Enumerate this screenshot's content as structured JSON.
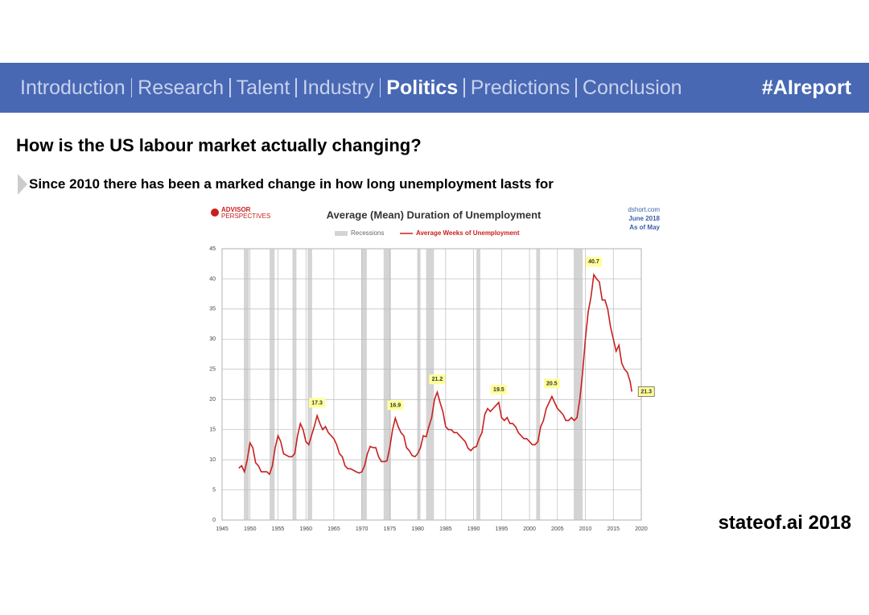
{
  "header": {
    "nav": [
      "Introduction",
      "Research",
      "Talent",
      "Industry",
      "Politics",
      "Predictions",
      "Conclusion"
    ],
    "highlighted": "Politics",
    "tag": "#AIreport"
  },
  "title": "How is the US labour market actually changing?",
  "subtitle": "Since 2010 there has been a marked change in how long unemployment lasts for",
  "footer": "stateof.ai 2018",
  "chart_data": {
    "type": "line",
    "title": "Average (Mean) Duration of Unemployment",
    "logo": [
      "ADVISOR",
      "PERSPECTIVES"
    ],
    "source": [
      "dshort.com",
      "June 2018",
      "As of May"
    ],
    "x": [
      1948,
      1948.5,
      1949,
      1949.5,
      1950,
      1950.5,
      1951,
      1951.5,
      1952,
      1953,
      1953.5,
      1954,
      1954.5,
      1955,
      1955.5,
      1956,
      1957,
      1957.5,
      1958,
      1958.5,
      1959,
      1959.5,
      1960,
      1960.5,
      1961,
      1961.5,
      1962,
      1962.5,
      1963,
      1963.5,
      1964,
      1965,
      1965.5,
      1966,
      1966.5,
      1967,
      1967.5,
      1968,
      1969,
      1969.5,
      1970,
      1970.5,
      1971,
      1971.5,
      1972,
      1972.5,
      1973,
      1973.5,
      1974,
      1974.5,
      1975,
      1975.5,
      1976,
      1976.5,
      1977,
      1977.5,
      1978,
      1978.5,
      1979,
      1979.5,
      1980,
      1980.5,
      1981,
      1981.5,
      1982,
      1982.5,
      1983,
      1983.5,
      1984,
      1984.5,
      1985,
      1985.5,
      1986,
      1986.5,
      1987,
      1987.5,
      1988,
      1988.5,
      1989,
      1989.5,
      1990,
      1990.5,
      1991,
      1991.5,
      1992,
      1992.5,
      1993,
      1993.5,
      1994,
      1994.5,
      1995,
      1995.5,
      1996,
      1996.5,
      1997,
      1997.5,
      1998,
      1998.5,
      1999,
      1999.5,
      2000,
      2000.5,
      2001,
      2001.5,
      2002,
      2002.5,
      2003,
      2003.5,
      2004,
      2004.5,
      2005,
      2005.5,
      2006,
      2006.5,
      2007,
      2007.5,
      2008,
      2008.5,
      2009,
      2009.5,
      2010,
      2010.5,
      2011,
      2011.5,
      2012,
      2012.5,
      2013,
      2013.5,
      2014,
      2014.5,
      2015,
      2015.5,
      2016,
      2016.5,
      2017,
      2017.5,
      2018,
      2018.3
    ],
    "series": [
      {
        "name": "Average Weeks of Unemployment",
        "color": "#c8201e",
        "values": [
          8.6,
          9,
          8,
          10,
          12.8,
          12,
          9.5,
          9,
          8,
          8,
          7.6,
          9,
          12,
          14,
          13,
          11,
          10.5,
          10.5,
          11,
          14,
          16,
          15,
          13,
          12.5,
          14,
          15.5,
          17.3,
          16,
          15,
          15.5,
          14.5,
          13.5,
          12.5,
          11,
          10.5,
          9,
          8.5,
          8.5,
          8,
          7.8,
          8,
          9,
          11,
          12.2,
          12,
          12,
          10.5,
          9.7,
          9.7,
          9.8,
          12,
          15,
          16.9,
          15.5,
          14.5,
          14,
          12,
          11.5,
          10.7,
          10.5,
          11,
          12,
          14,
          13.8,
          15.5,
          17,
          20,
          21.2,
          19.5,
          18,
          15.5,
          15,
          15,
          14.5,
          14.5,
          14,
          13.5,
          13,
          11.9,
          11.5,
          12,
          12.2,
          13.5,
          14.5,
          17.5,
          18.5,
          18,
          18.5,
          19,
          19.5,
          17,
          16.5,
          17,
          16,
          16,
          15.5,
          14.5,
          14,
          13.5,
          13.5,
          13,
          12.5,
          12.5,
          13,
          15.5,
          16.5,
          18.5,
          19.5,
          20.5,
          19.5,
          18.5,
          18,
          17.5,
          16.5,
          16.5,
          17,
          16.5,
          17,
          20,
          24.5,
          30,
          34.5,
          37,
          40.7,
          40,
          39.5,
          36.5,
          36.5,
          35,
          32,
          30,
          28,
          29,
          26,
          25,
          24.5,
          23,
          21.3
        ]
      }
    ],
    "recessions": {
      "name": "Recessions",
      "color": "#d4d4d4",
      "periods": [
        [
          1948.9,
          1949.8
        ],
        [
          1953.5,
          1954.4
        ],
        [
          1957.6,
          1958.3
        ],
        [
          1960.3,
          1961.1
        ],
        [
          1969.9,
          1970.9
        ],
        [
          1973.9,
          1975.2
        ],
        [
          1980,
          1980.5
        ],
        [
          1981.5,
          1982.9
        ],
        [
          1990.5,
          1991.2
        ],
        [
          2001.2,
          2001.9
        ],
        [
          2007.9,
          2009.5
        ]
      ]
    },
    "annotations": [
      {
        "x": 1962,
        "value": 17.3
      },
      {
        "x": 1976,
        "value": 16.9
      },
      {
        "x": 1983.5,
        "value": 21.2
      },
      {
        "x": 1994.5,
        "value": 19.5
      },
      {
        "x": 2004,
        "value": 20.5
      },
      {
        "x": 2011.5,
        "value": 40.7
      },
      {
        "x": 2018.3,
        "value": 21.3
      }
    ],
    "xlim": [
      1945,
      2020
    ],
    "ylim": [
      0,
      45
    ],
    "xticks": [
      1945,
      1950,
      1955,
      1960,
      1965,
      1970,
      1975,
      1980,
      1985,
      1990,
      1995,
      2000,
      2005,
      2010,
      2015,
      2020
    ],
    "yticks": [
      0,
      5,
      10,
      15,
      20,
      25,
      30,
      35,
      40,
      45
    ],
    "grid": true
  }
}
